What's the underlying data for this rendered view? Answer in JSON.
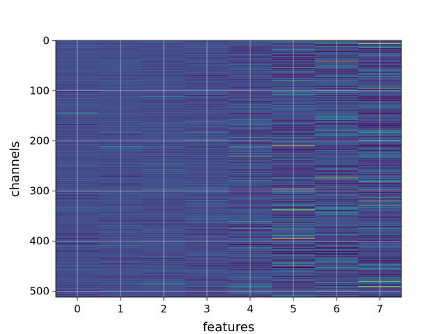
{
  "chart_data": {
    "type": "heatmap",
    "title": "",
    "xlabel": "features",
    "ylabel": "channels",
    "x_tick_labels": [
      "0",
      "1",
      "2",
      "3",
      "4",
      "5",
      "6",
      "7"
    ],
    "y_tick_labels": [
      "0",
      "100",
      "200",
      "300",
      "400",
      "500"
    ],
    "y_ticks": [
      0,
      100,
      200,
      300,
      400,
      500
    ],
    "rows": 512,
    "columns": 8,
    "xlim": [
      -0.5,
      7.5
    ],
    "ylim": [
      511.5,
      -0.5
    ],
    "y_axis_inverted": true,
    "grid": true,
    "colormap": "viridis",
    "column_spread": [
      0.06,
      0.07,
      0.08,
      0.12,
      0.18,
      0.24,
      0.26,
      0.26
    ],
    "highlights": [
      {
        "feature": 4,
        "channel": 232,
        "value": 0.85
      },
      {
        "feature": 4,
        "channel": 238,
        "value": 0.0
      },
      {
        "feature": 4,
        "channel": 361,
        "value": 0.7
      },
      {
        "feature": 4,
        "channel": 375,
        "value": 0.7
      },
      {
        "feature": 5,
        "channel": 53,
        "value": 0.8
      },
      {
        "feature": 5,
        "channel": 210,
        "value": 0.98
      },
      {
        "feature": 5,
        "channel": 296,
        "value": 0.95
      },
      {
        "feature": 5,
        "channel": 338,
        "value": 0.95
      },
      {
        "feature": 5,
        "channel": 394,
        "value": 0.98
      },
      {
        "feature": 5,
        "channel": 445,
        "value": 0.75
      },
      {
        "feature": 6,
        "channel": 12,
        "value": 0.7
      },
      {
        "feature": 6,
        "channel": 41,
        "value": 0.95
      },
      {
        "feature": 6,
        "channel": 272,
        "value": 0.95
      },
      {
        "feature": 6,
        "channel": 290,
        "value": 0.7
      },
      {
        "feature": 6,
        "channel": 458,
        "value": 0.0
      },
      {
        "feature": 6,
        "channel": 482,
        "value": 0.75
      },
      {
        "feature": 7,
        "channel": 6,
        "value": 0.95
      },
      {
        "feature": 7,
        "channel": 183,
        "value": 0.72
      },
      {
        "feature": 7,
        "channel": 281,
        "value": 0.75
      },
      {
        "feature": 7,
        "channel": 329,
        "value": 0.72
      },
      {
        "feature": 7,
        "channel": 490,
        "value": 0.9
      }
    ]
  }
}
